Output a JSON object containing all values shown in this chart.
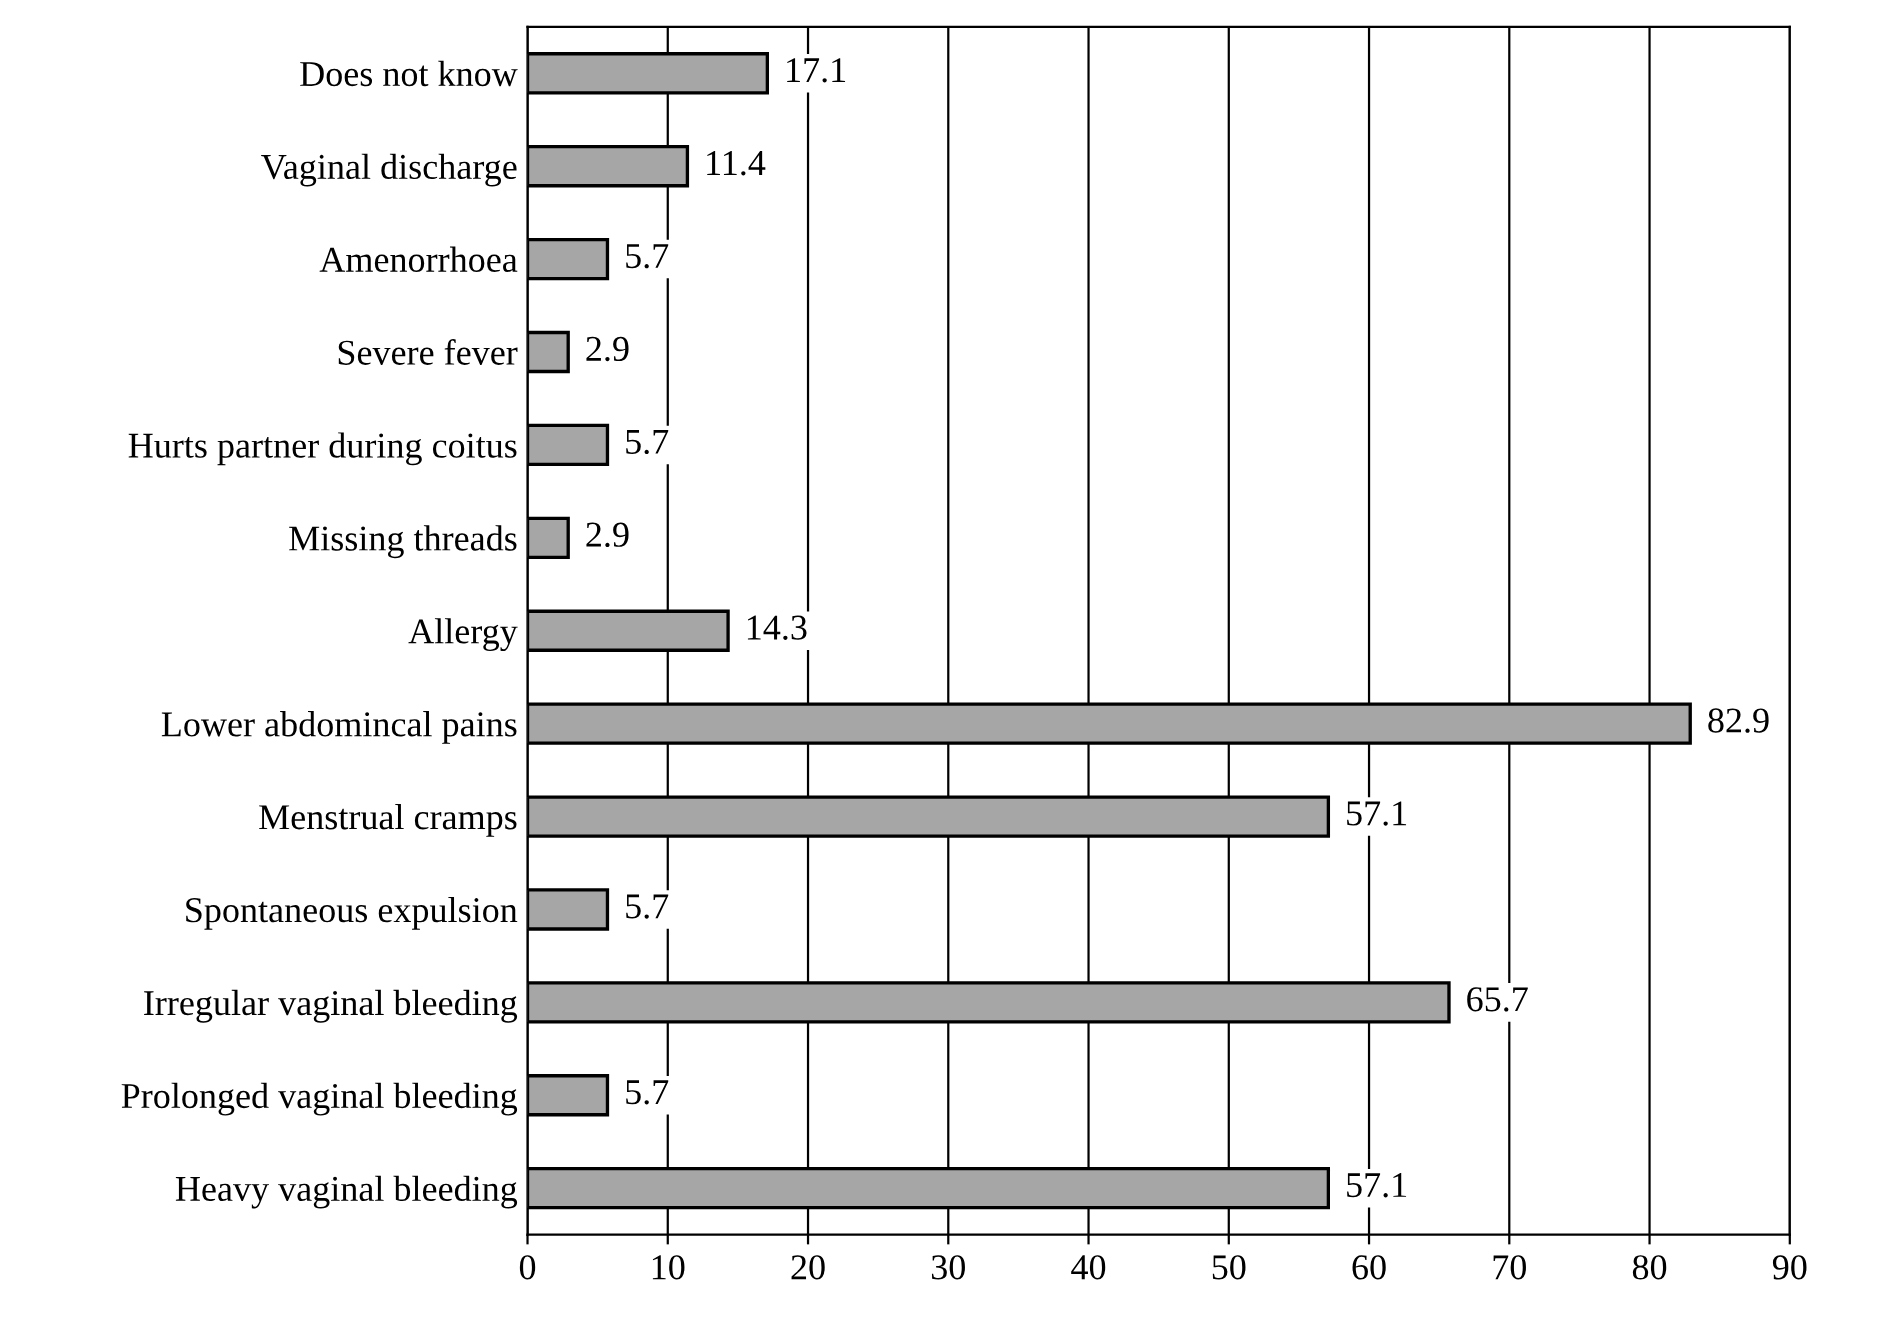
{
  "chart_data": {
    "type": "bar",
    "orientation": "horizontal",
    "categories": [
      "Does not know",
      "Vaginal discharge",
      "Amenorrhoea",
      "Severe fever",
      "Hurts partner during coitus",
      "Missing threads",
      "Allergy",
      "Lower abdomincal pains",
      "Menstrual cramps",
      "Spontaneous expulsion",
      "Irregular vaginal bleeding",
      "Prolonged vaginal bleeding",
      "Heavy vaginal bleeding"
    ],
    "values": [
      17.1,
      11.4,
      5.7,
      2.9,
      5.7,
      2.9,
      14.3,
      82.9,
      57.1,
      5.7,
      65.7,
      5.7,
      57.1
    ],
    "color": "#a6a6a6",
    "xlim": [
      0,
      90
    ],
    "xticks": [
      0,
      10,
      20,
      30,
      40,
      50,
      60,
      70,
      80,
      90
    ],
    "grid": "x",
    "data_labels": true,
    "legend": false
  }
}
